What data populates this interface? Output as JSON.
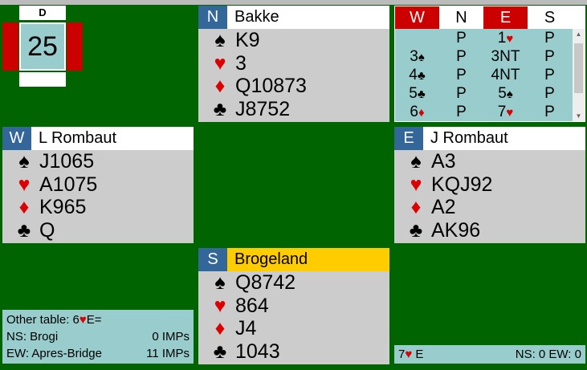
{
  "board": {
    "dealer": "D",
    "number": "25"
  },
  "colors": {
    "background": "#006400",
    "seat": "#336699",
    "vulnerable": "#cc0000",
    "declarer": "#ffcc00",
    "panel": "#99cccc",
    "hand": "#cccccc"
  },
  "suits": {
    "spades": "♠",
    "hearts": "♥",
    "diamonds": "♦",
    "clubs": "♣"
  },
  "north": {
    "seat": "N",
    "name": "Bakke",
    "spades": "K9",
    "hearts": "3",
    "diamonds": "Q10873",
    "clubs": "J8752"
  },
  "west": {
    "seat": "W",
    "name": "L Rombaut",
    "spades": "J1065",
    "hearts": "A1075",
    "diamonds": "K965",
    "clubs": "Q"
  },
  "east": {
    "seat": "E",
    "name": "J Rombaut",
    "spades": "A3",
    "hearts": "KQJ92",
    "diamonds": "A2",
    "clubs": "AK96"
  },
  "south": {
    "seat": "S",
    "name": "Brogeland",
    "spades": "Q8742",
    "hearts": "864",
    "diamonds": "J4",
    "clubs": "1043"
  },
  "bidding": {
    "headers": [
      "W",
      "N",
      "E",
      "S"
    ],
    "rows": [
      [
        {
          "t": "",
          "s": ""
        },
        {
          "t": "P",
          "s": ""
        },
        {
          "t": "1",
          "s": "♥"
        },
        {
          "t": "P",
          "s": ""
        }
      ],
      [
        {
          "t": "3",
          "s": "♠"
        },
        {
          "t": "P",
          "s": ""
        },
        {
          "t": "3NT",
          "s": ""
        },
        {
          "t": "P",
          "s": ""
        }
      ],
      [
        {
          "t": "4",
          "s": "♣"
        },
        {
          "t": "P",
          "s": ""
        },
        {
          "t": "4NT",
          "s": ""
        },
        {
          "t": "P",
          "s": ""
        }
      ],
      [
        {
          "t": "5",
          "s": "♣"
        },
        {
          "t": "P",
          "s": ""
        },
        {
          "t": "5",
          "s": "♠"
        },
        {
          "t": "P",
          "s": ""
        }
      ],
      [
        {
          "t": "6",
          "s": "♦"
        },
        {
          "t": "P",
          "s": ""
        },
        {
          "t": "7",
          "s": "♥"
        },
        {
          "t": "P",
          "s": ""
        }
      ]
    ]
  },
  "other_table": {
    "label": "Other table: 6",
    "suit": "♥",
    "rest": "E=",
    "ns_label": "NS: Brogi",
    "ns_imps": "0 IMPs",
    "ew_label": "EW: Apres-Bridge",
    "ew_imps": "11 IMPs"
  },
  "result": {
    "contract": "7",
    "suit": "♥",
    "declarer": "E",
    "score": "NS: 0 EW: 0"
  }
}
